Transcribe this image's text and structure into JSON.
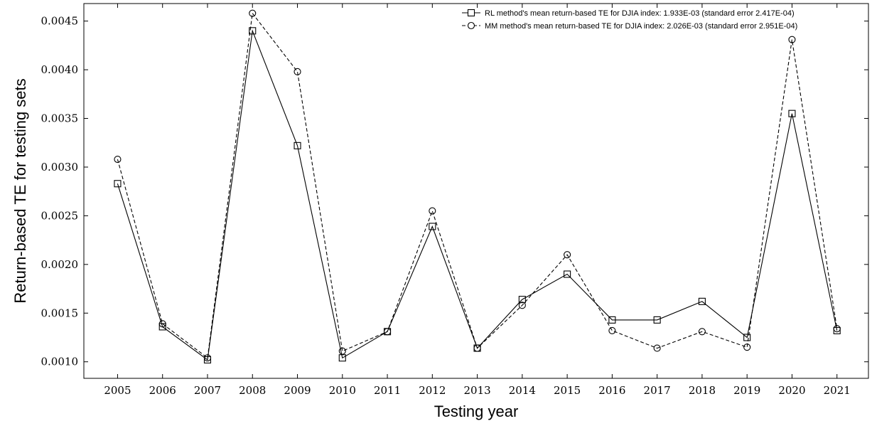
{
  "chart_data": {
    "type": "line",
    "title": "",
    "xlabel": "Testing year",
    "ylabel": "Return-based TE for testing sets",
    "categories": [
      "2005",
      "2006",
      "2007",
      "2008",
      "2009",
      "2010",
      "2011",
      "2012",
      "2013",
      "2014",
      "2015",
      "2016",
      "2017",
      "2018",
      "2019",
      "2020",
      "2021"
    ],
    "xlim": [
      2004.25,
      2021.7
    ],
    "ylim": [
      0.00083,
      0.00468
    ],
    "yticks": [
      "0.0010",
      "0.0015",
      "0.0020",
      "0.0025",
      "0.0030",
      "0.0035",
      "0.0040",
      "0.0045"
    ],
    "grid": false,
    "legend_position": "top-right",
    "series": [
      {
        "name": "RL method's mean return-based TE for DJIA index: 1.933E-03 (standard error 2.417E-04)",
        "marker": "square",
        "line_style": "solid",
        "color": "#000000",
        "values": [
          0.00283,
          0.00136,
          0.00102,
          0.0044,
          0.00322,
          0.00104,
          0.00131,
          0.00239,
          0.00114,
          0.00164,
          0.0019,
          0.00143,
          0.00143,
          0.00162,
          0.00125,
          0.00355,
          0.00132
        ]
      },
      {
        "name": "MM method's mean return-based TE for DJIA index: 2.026E-03 (standard error 2.951E-04)",
        "marker": "circle",
        "line_style": "dashed",
        "color": "#000000",
        "values": [
          0.00308,
          0.00139,
          0.00104,
          0.00458,
          0.00398,
          0.00111,
          0.00131,
          0.00255,
          0.00114,
          0.00158,
          0.0021,
          0.00132,
          0.00114,
          0.00131,
          0.00115,
          0.00431,
          0.00134
        ]
      }
    ]
  }
}
